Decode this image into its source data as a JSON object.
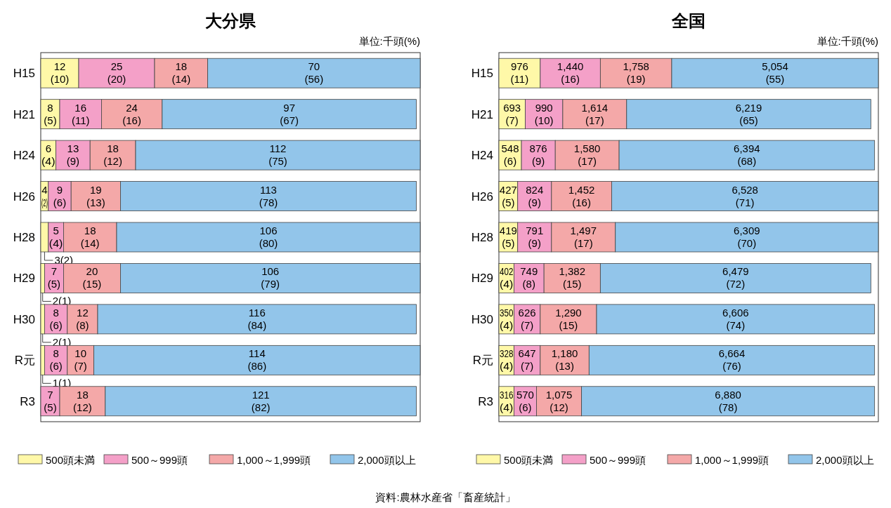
{
  "chart_data": [
    {
      "type": "bar",
      "orientation": "horizontal",
      "stacked": true,
      "title": "大分県",
      "categories": [
        "H15",
        "H21",
        "H24",
        "H26",
        "H28",
        "H29",
        "H30",
        "R元",
        "R3"
      ],
      "xlim": [
        0,
        100
      ],
      "tick_labels": "y",
      "legend": "bottom",
      "annotations": [
        "単位:千頭(%)"
      ],
      "series": [
        {
          "name": "500頭未満",
          "color": "#fff8a8",
          "values": [
            10,
            5,
            4,
            2,
            2,
            1,
            1,
            1,
            null
          ],
          "value_labels": [
            "12\n(10)",
            "8\n(5)",
            "6\n(4)",
            "4\n(2)",
            "3(2)",
            "2(1)",
            "2(1)",
            "1(1)",
            null
          ]
        },
        {
          "name": "500～999頭",
          "color": "#f4a0c8",
          "values": [
            20,
            11,
            9,
            6,
            4,
            5,
            6,
            6,
            5
          ],
          "value_labels": [
            "25\n(20)",
            "16\n(11)",
            "13\n(9)",
            "9\n(6)",
            "5\n(4)",
            "7\n(5)",
            "8\n(6)",
            "8\n(6)",
            "7\n(5)"
          ]
        },
        {
          "name": "1,000～1,999頭",
          "color": "#f4a8a8",
          "values": [
            14,
            16,
            12,
            13,
            14,
            15,
            8,
            7,
            12
          ],
          "value_labels": [
            "18\n(14)",
            "24\n(16)",
            "18\n(12)",
            "19\n(13)",
            "18\n(14)",
            "20\n(15)",
            "12\n(8)",
            "10\n(7)",
            "18\n(12)"
          ]
        },
        {
          "name": "2,000頭以上",
          "color": "#92c5ea",
          "values": [
            56,
            67,
            75,
            78,
            80,
            79,
            84,
            86,
            82
          ],
          "value_labels": [
            "70\n(56)",
            "97\n(67)",
            "112\n(75)",
            "113\n(78)",
            "106\n(80)",
            "106\n(79)",
            "116\n(84)",
            "114\n(86)",
            "121\n(82)"
          ]
        }
      ]
    },
    {
      "type": "bar",
      "orientation": "horizontal",
      "stacked": true,
      "title": "全国",
      "categories": [
        "H15",
        "H21",
        "H24",
        "H26",
        "H28",
        "H29",
        "H30",
        "R元",
        "R3"
      ],
      "xlim": [
        0,
        101
      ],
      "tick_labels": "y",
      "legend": "bottom",
      "annotations": [
        "単位:千頭(%)",
        "資料:農林水産省「畜産統計」"
      ],
      "series": [
        {
          "name": "500頭未満",
          "color": "#fff8a8",
          "values": [
            11,
            7,
            6,
            5,
            5,
            4,
            4,
            4,
            4
          ],
          "value_labels": [
            "976\n(11)",
            "693\n(7)",
            "548\n(6)",
            "427\n(5)",
            "419\n(5)",
            "402\n(4)",
            "350\n(4)",
            "328\n(4)",
            "316\n(4)"
          ]
        },
        {
          "name": "500～999頭",
          "color": "#f4a0c8",
          "values": [
            16,
            10,
            9,
            9,
            9,
            8,
            7,
            7,
            6
          ],
          "value_labels": [
            "1,440\n(16)",
            "990\n(10)",
            "876\n(9)",
            "824\n(9)",
            "791\n(9)",
            "749\n(8)",
            "626\n(7)",
            "647\n(7)",
            "570\n(6)"
          ]
        },
        {
          "name": "1,000～1,999頭",
          "color": "#f4a8a8",
          "values": [
            19,
            17,
            17,
            16,
            17,
            15,
            15,
            13,
            12
          ],
          "value_labels": [
            "1,758\n(19)",
            "1,614\n(17)",
            "1,580\n(17)",
            "1,452\n(16)",
            "1,497\n(17)",
            "1,382\n(15)",
            "1,290\n(15)",
            "1,180\n(13)",
            "1,075\n(12)"
          ]
        },
        {
          "name": "2,000頭以上",
          "color": "#92c5ea",
          "values": [
            55,
            65,
            68,
            71,
            70,
            72,
            74,
            76,
            78
          ],
          "value_labels": [
            "5,054\n(55)",
            "6,219\n(65)",
            "6,394\n(68)",
            "6,528\n(71)",
            "6,309\n(70)",
            "6,479\n(72)",
            "6,606\n(74)",
            "6,664\n(76)",
            "6,880\n(78)"
          ]
        }
      ]
    }
  ]
}
